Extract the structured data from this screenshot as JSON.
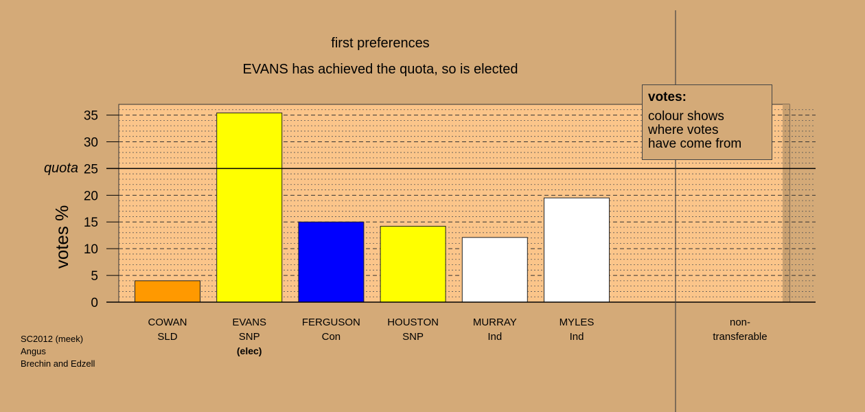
{
  "title_lines": [
    "first preferences",
    "EVANS has achieved the quota, so is elected"
  ],
  "meta_lines": [
    "SC2012 (meek)",
    "Angus",
    "Brechin and Edzell"
  ],
  "quota_label": "quota",
  "legend": {
    "title": "votes:",
    "body_lines": [
      "colour shows",
      "where votes",
      "have come from"
    ]
  },
  "chart_data": {
    "type": "bar",
    "title": "first preferences",
    "subtitle": "EVANS has achieved the quota, so is elected",
    "ylabel": "votes %",
    "ylim": [
      0,
      37
    ],
    "yticks": [
      0,
      5,
      10,
      15,
      20,
      25,
      30,
      35
    ],
    "quota": 25,
    "grid": true,
    "legend_position": "top-right",
    "categories": [
      {
        "name": "COWAN",
        "party": "SLD",
        "value": 4.0,
        "color": "#ff9900"
      },
      {
        "name": "EVANS",
        "party": "SNP",
        "note": "(elec)",
        "value": 35.4,
        "color": "#ffff00"
      },
      {
        "name": "FERGUSON",
        "party": "Con",
        "value": 15.0,
        "color": "#0000ff"
      },
      {
        "name": "HOUSTON",
        "party": "SNP",
        "value": 14.2,
        "color": "#ffff00"
      },
      {
        "name": "MURRAY",
        "party": "Ind",
        "value": 12.1,
        "color": "#ffffff"
      },
      {
        "name": "MYLES",
        "party": "Ind",
        "value": 19.5,
        "color": "#ffffff"
      }
    ],
    "nontransferable": {
      "label_lines": [
        "non-",
        "transferable"
      ],
      "value": 0
    }
  },
  "colors": {
    "background": "#d4aa78",
    "plot_area": "#fbc58a",
    "grid": "#555555"
  }
}
